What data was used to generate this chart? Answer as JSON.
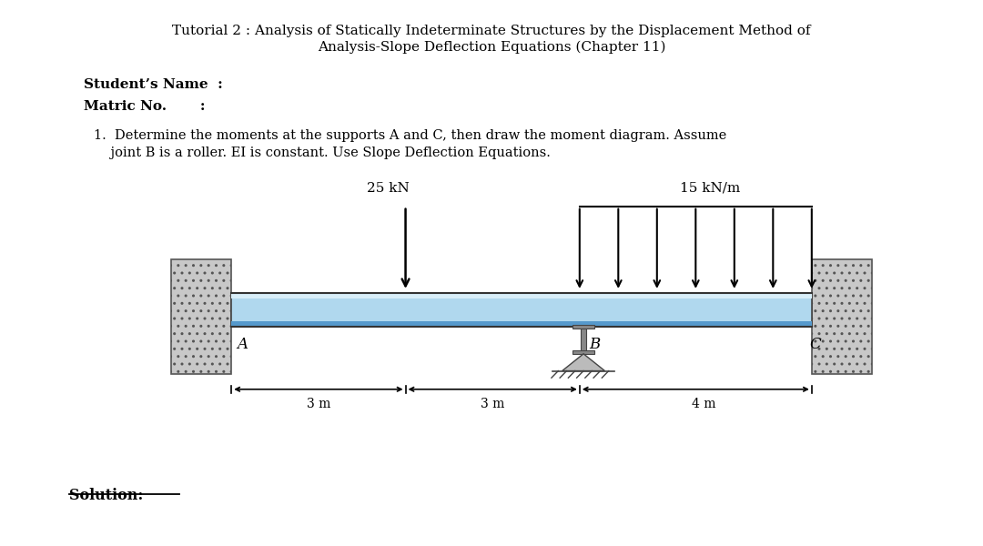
{
  "title_line1": "Tutorial 2 : Analysis of Statically Indeterminate Structures by the Displacement Method of",
  "title_line2": "Analysis-Slope Deflection Equations (Chapter 11)",
  "student_name_label": "Student’s Name  :",
  "matric_label": "Matric No.       :",
  "question_line1": "1.  Determine the moments at the supports A and C, then draw the moment diagram. Assume",
  "question_line2": "    joint B is a roller. EI is constant. Use Slope Deflection Equations.",
  "load_point_label": "25 kN",
  "load_dist_label": "15 kN/m",
  "label_A": "A",
  "label_B": "B",
  "label_C": "C",
  "dim1": "3 m",
  "dim2": "3 m",
  "dim3": "4 m",
  "solution_label": "Solution:"
}
